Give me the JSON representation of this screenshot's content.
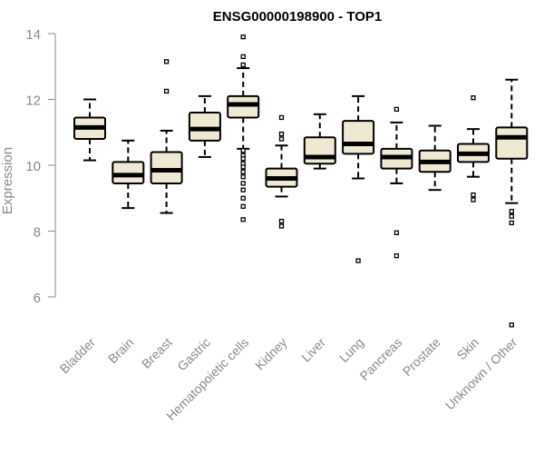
{
  "chart_data": {
    "type": "boxplot",
    "title": "ENSG00000198900 - TOP1",
    "xlabel": "",
    "ylabel": "Expression",
    "ylim": [
      5,
      14.1
    ],
    "yticks": [
      6,
      8,
      10,
      12,
      14
    ],
    "grid": false,
    "legend": "none",
    "categories": [
      "Bladder",
      "Brain",
      "Breast",
      "Gastric",
      "Hematopoietic cells",
      "Kidney",
      "Liver",
      "Lung",
      "Pancreas",
      "Prostate",
      "Skin",
      "Unknown / Other"
    ],
    "boxes": [
      {
        "category": "Bladder",
        "whisker_low": 10.15,
        "q1": 10.8,
        "median": 11.15,
        "q3": 11.45,
        "whisker_high": 12.0,
        "outliers": []
      },
      {
        "category": "Brain",
        "whisker_low": 8.7,
        "q1": 9.45,
        "median": 9.7,
        "q3": 10.1,
        "whisker_high": 10.75,
        "outliers": []
      },
      {
        "category": "Breast",
        "whisker_low": 8.55,
        "q1": 9.45,
        "median": 9.85,
        "q3": 10.4,
        "whisker_high": 11.05,
        "outliers": [
          12.25,
          13.15
        ]
      },
      {
        "category": "Gastric",
        "whisker_low": 10.25,
        "q1": 10.75,
        "median": 11.1,
        "q3": 11.6,
        "whisker_high": 12.1,
        "outliers": []
      },
      {
        "category": "Hematopoietic cells",
        "whisker_low": 10.5,
        "q1": 11.45,
        "median": 11.85,
        "q3": 12.1,
        "whisker_high": 12.95,
        "outliers": [
          13.05,
          13.3,
          13.9,
          10.45,
          10.3,
          10.2,
          10.05,
          9.95,
          9.8,
          9.65,
          9.45,
          9.25,
          9.0,
          8.75,
          8.35
        ]
      },
      {
        "category": "Kidney",
        "whisker_low": 9.05,
        "q1": 9.35,
        "median": 9.6,
        "q3": 9.9,
        "whisker_high": 10.6,
        "outliers": [
          11.45,
          10.95,
          10.8,
          8.3,
          8.15
        ]
      },
      {
        "category": "Liver",
        "whisker_low": 9.9,
        "q1": 10.05,
        "median": 10.25,
        "q3": 10.85,
        "whisker_high": 11.55,
        "outliers": []
      },
      {
        "category": "Lung",
        "whisker_low": 9.6,
        "q1": 10.35,
        "median": 10.65,
        "q3": 11.35,
        "whisker_high": 12.1,
        "outliers": [
          7.1
        ]
      },
      {
        "category": "Pancreas",
        "whisker_low": 9.45,
        "q1": 9.9,
        "median": 10.25,
        "q3": 10.5,
        "whisker_high": 11.3,
        "outliers": [
          11.7,
          7.95,
          7.25
        ]
      },
      {
        "category": "Prostate",
        "whisker_low": 9.25,
        "q1": 9.8,
        "median": 10.1,
        "q3": 10.45,
        "whisker_high": 11.2,
        "outliers": []
      },
      {
        "category": "Skin",
        "whisker_low": 9.65,
        "q1": 10.1,
        "median": 10.35,
        "q3": 10.65,
        "whisker_high": 11.1,
        "outliers": [
          12.05,
          9.1,
          8.95
        ]
      },
      {
        "category": "Unknown / Other",
        "whisker_low": 8.85,
        "q1": 10.2,
        "median": 10.85,
        "q3": 11.15,
        "whisker_high": 12.6,
        "outliers": [
          8.6,
          8.45,
          8.25,
          5.15
        ]
      }
    ],
    "colors": {
      "box_fill": "#efe9d3",
      "box_stroke": "#000000",
      "axis": "#8a8a8a",
      "title": "#000000"
    }
  }
}
